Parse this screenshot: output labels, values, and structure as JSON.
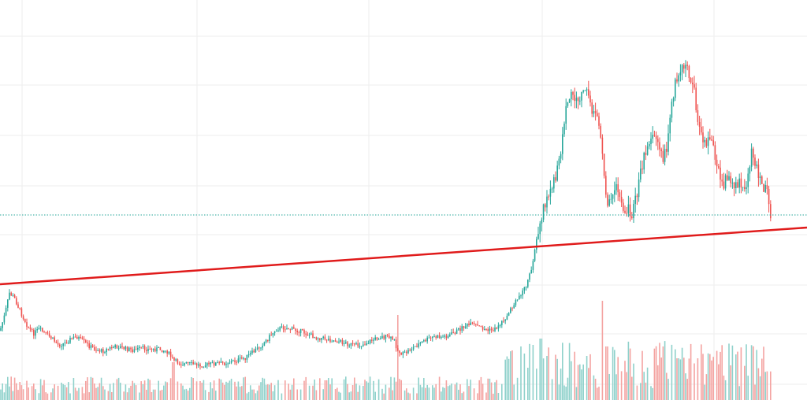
{
  "chart_data": {
    "type": "candlestick",
    "title": "",
    "xlabel": "",
    "ylabel": "",
    "ylim": [
      0,
      508
    ],
    "colors": {
      "up": "#26a69a",
      "down": "#ef5350",
      "up_volume": "#8fd1cb",
      "down_volume": "#f4a3a1",
      "trendline": "#e01b1b",
      "price_line": "#26a69a",
      "grid": "#eeeeee",
      "background": "#ffffff"
    },
    "grid": true,
    "price_path": [
      [
        0,
        420
      ],
      [
        6,
        400
      ],
      [
        12,
        372
      ],
      [
        18,
        378
      ],
      [
        26,
        396
      ],
      [
        34,
        412
      ],
      [
        42,
        424
      ],
      [
        50,
        418
      ],
      [
        58,
        424
      ],
      [
        66,
        430
      ],
      [
        74,
        438
      ],
      [
        82,
        436
      ],
      [
        90,
        430
      ],
      [
        98,
        428
      ],
      [
        106,
        434
      ],
      [
        114,
        440
      ],
      [
        122,
        444
      ],
      [
        130,
        446
      ],
      [
        140,
        442
      ],
      [
        150,
        440
      ],
      [
        160,
        443
      ],
      [
        170,
        445
      ],
      [
        180,
        442
      ],
      [
        190,
        444
      ],
      [
        200,
        443
      ],
      [
        212,
        446
      ],
      [
        220,
        458
      ],
      [
        230,
        462
      ],
      [
        240,
        462
      ],
      [
        255,
        464
      ],
      [
        270,
        462
      ],
      [
        285,
        461
      ],
      [
        300,
        458
      ],
      [
        312,
        454
      ],
      [
        320,
        448
      ],
      [
        330,
        440
      ],
      [
        340,
        430
      ],
      [
        350,
        418
      ],
      [
        360,
        416
      ],
      [
        370,
        418
      ],
      [
        380,
        420
      ],
      [
        390,
        424
      ],
      [
        400,
        428
      ],
      [
        412,
        430
      ],
      [
        422,
        432
      ],
      [
        432,
        434
      ],
      [
        442,
        437
      ],
      [
        452,
        439
      ],
      [
        462,
        437
      ],
      [
        472,
        432
      ],
      [
        482,
        428
      ],
      [
        492,
        428
      ],
      [
        500,
        432
      ],
      [
        505,
        446
      ],
      [
        512,
        450
      ],
      [
        520,
        444
      ],
      [
        530,
        438
      ],
      [
        540,
        432
      ],
      [
        550,
        428
      ],
      [
        560,
        428
      ],
      [
        570,
        426
      ],
      [
        580,
        420
      ],
      [
        590,
        414
      ],
      [
        600,
        412
      ],
      [
        610,
        416
      ],
      [
        620,
        420
      ],
      [
        628,
        418
      ],
      [
        636,
        410
      ],
      [
        644,
        400
      ],
      [
        652,
        388
      ],
      [
        660,
        374
      ],
      [
        668,
        362
      ],
      [
        674,
        344
      ],
      [
        678,
        318
      ],
      [
        682,
        300
      ],
      [
        686,
        282
      ],
      [
        690,
        262
      ],
      [
        696,
        248
      ],
      [
        700,
        238
      ],
      [
        706,
        224
      ],
      [
        710,
        200
      ],
      [
        714,
        172
      ],
      [
        718,
        140
      ],
      [
        722,
        124
      ],
      [
        726,
        118
      ],
      [
        730,
        126
      ],
      [
        734,
        128
      ],
      [
        738,
        120
      ],
      [
        742,
        112
      ],
      [
        746,
        122
      ],
      [
        750,
        134
      ],
      [
        754,
        150
      ],
      [
        758,
        146
      ],
      [
        762,
        168
      ],
      [
        766,
        220
      ],
      [
        770,
        262
      ],
      [
        774,
        246
      ],
      [
        778,
        252
      ],
      [
        782,
        238
      ],
      [
        786,
        248
      ],
      [
        790,
        262
      ],
      [
        794,
        268
      ],
      [
        798,
        266
      ],
      [
        802,
        272
      ],
      [
        806,
        256
      ],
      [
        810,
        236
      ],
      [
        814,
        214
      ],
      [
        818,
        196
      ],
      [
        822,
        180
      ],
      [
        826,
        172
      ],
      [
        830,
        168
      ],
      [
        834,
        180
      ],
      [
        838,
        194
      ],
      [
        842,
        200
      ],
      [
        846,
        188
      ],
      [
        850,
        150
      ],
      [
        854,
        120
      ],
      [
        858,
        102
      ],
      [
        862,
        96
      ],
      [
        866,
        88
      ],
      [
        870,
        80
      ],
      [
        874,
        92
      ],
      [
        878,
        104
      ],
      [
        882,
        122
      ],
      [
        886,
        160
      ],
      [
        890,
        176
      ],
      [
        894,
        184
      ],
      [
        898,
        176
      ],
      [
        902,
        168
      ],
      [
        906,
        192
      ],
      [
        910,
        212
      ],
      [
        914,
        228
      ],
      [
        918,
        238
      ],
      [
        922,
        222
      ],
      [
        926,
        228
      ],
      [
        930,
        234
      ],
      [
        934,
        236
      ],
      [
        938,
        230
      ],
      [
        942,
        242
      ],
      [
        946,
        238
      ],
      [
        950,
        216
      ],
      [
        954,
        192
      ],
      [
        958,
        204
      ],
      [
        962,
        220
      ],
      [
        966,
        236
      ],
      [
        970,
        240
      ],
      [
        974,
        244
      ],
      [
        978,
        272
      ],
      [
        980,
        273
      ]
    ],
    "volume_spikes": [
      [
        220,
        460
      ],
      [
        505,
        400
      ],
      [
        766,
        382
      ],
      [
        770,
        440
      ],
      [
        650,
        445
      ],
      [
        686,
        430
      ],
      [
        860,
        455
      ]
    ],
    "trendline": {
      "start": [
        0,
        361
      ],
      "end": [
        1024,
        289
      ]
    },
    "price_line_level": 273
  }
}
